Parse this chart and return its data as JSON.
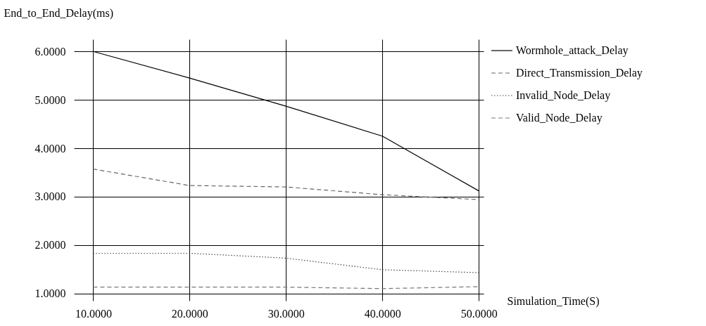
{
  "chart_data": {
    "type": "line",
    "xlabel": "Simulation_Time(S)",
    "ylabel": "End_to_End_Delay(ms)",
    "x": [
      10,
      20,
      30,
      40,
      50
    ],
    "series": [
      {
        "name": "Wormhole_attack_Delay",
        "color": "#000000",
        "line_style": "solid",
        "values": [
          6.0,
          5.45,
          4.87,
          4.25,
          3.12
        ]
      },
      {
        "name": "Direct_Transmission_Delay",
        "color": "#666666",
        "line_style": "dashed",
        "values": [
          3.57,
          3.23,
          3.2,
          3.04,
          2.94
        ]
      },
      {
        "name": "Invalid_Node_Delay",
        "color": "#444444",
        "line_style": "dotted",
        "values": [
          1.83,
          1.83,
          1.73,
          1.49,
          1.43
        ]
      },
      {
        "name": "Valid_Node_Delay",
        "color": "#777777",
        "line_style": "dashed",
        "values": [
          1.13,
          1.13,
          1.13,
          1.1,
          1.14
        ]
      }
    ],
    "xlim": [
      8,
      50.5
    ],
    "ylim": [
      0.85,
      6.25
    ],
    "xticks": [
      {
        "value": 10,
        "label": "10.0000"
      },
      {
        "value": 20,
        "label": "20.0000"
      },
      {
        "value": 30,
        "label": "30.0000"
      },
      {
        "value": 40,
        "label": "40.0000"
      },
      {
        "value": 50,
        "label": "50.0000"
      }
    ],
    "yticks": [
      {
        "value": 1,
        "label": "1.0000"
      },
      {
        "value": 2,
        "label": "2.0000"
      },
      {
        "value": 3,
        "label": "3.0000"
      },
      {
        "value": 4,
        "label": "4.0000"
      },
      {
        "value": 5,
        "label": "5.0000"
      },
      {
        "value": 6,
        "label": "6.0000"
      }
    ],
    "grid": true,
    "legend": "top right"
  }
}
